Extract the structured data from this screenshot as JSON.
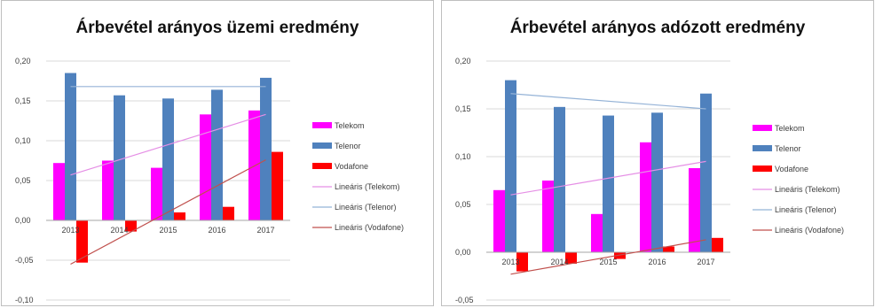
{
  "chart_data": [
    {
      "type": "bar",
      "title": "Árbevétel arányos üzemi eredmény",
      "categories": [
        "2013",
        "2014",
        "2015",
        "2016",
        "2017"
      ],
      "series": [
        {
          "name": "Telekom",
          "color": "#ff00ff",
          "values": [
            0.072,
            0.075,
            0.066,
            0.133,
            0.138
          ]
        },
        {
          "name": "Telenor",
          "color": "#4f81bd",
          "values": [
            0.185,
            0.157,
            0.153,
            0.164,
            0.179
          ]
        },
        {
          "name": "Vodafone",
          "color": "#ff0000",
          "values": [
            -0.053,
            -0.014,
            0.01,
            0.017,
            0.086
          ]
        }
      ],
      "trendlines": [
        {
          "name": "Lineáris (Telekom)",
          "color": "#e58fe5",
          "from": 0.057,
          "to": 0.133
        },
        {
          "name": "Lineáris (Telenor)",
          "color": "#95b3d7",
          "from": 0.168,
          "to": 0.168
        },
        {
          "name": "Lineáris (Vodafone)",
          "color": "#c0504d",
          "from": -0.055,
          "to": 0.076
        }
      ],
      "y_ticks": [
        "0,20",
        "0,15",
        "0,10",
        "0,05",
        "0,00",
        "-0,05",
        "-0,10"
      ],
      "ylim": [
        -0.1,
        0.2
      ],
      "grid": true,
      "legend": "right"
    },
    {
      "type": "bar",
      "title": "Árbevétel arányos adózott eredmény",
      "categories": [
        "2013",
        "2014",
        "2015",
        "2016",
        "2017"
      ],
      "series": [
        {
          "name": "Telekom",
          "color": "#ff00ff",
          "values": [
            0.065,
            0.075,
            0.04,
            0.115,
            0.088
          ]
        },
        {
          "name": "Telenor",
          "color": "#4f81bd",
          "values": [
            0.18,
            0.152,
            0.143,
            0.146,
            0.166
          ]
        },
        {
          "name": "Vodafone",
          "color": "#ff0000",
          "values": [
            -0.02,
            -0.012,
            -0.007,
            0.006,
            0.015
          ]
        }
      ],
      "trendlines": [
        {
          "name": "Lineáris (Telekom)",
          "color": "#e58fe5",
          "from": 0.06,
          "to": 0.095
        },
        {
          "name": "Lineáris (Telenor)",
          "color": "#95b3d7",
          "from": 0.166,
          "to": 0.15
        },
        {
          "name": "Lineáris (Vodafone)",
          "color": "#c0504d",
          "from": -0.023,
          "to": 0.013
        }
      ],
      "y_ticks": [
        "0,20",
        "0,15",
        "0,10",
        "0,05",
        "0,00",
        "-0,05"
      ],
      "ylim": [
        -0.05,
        0.2
      ],
      "grid": true,
      "legend": "right"
    }
  ]
}
